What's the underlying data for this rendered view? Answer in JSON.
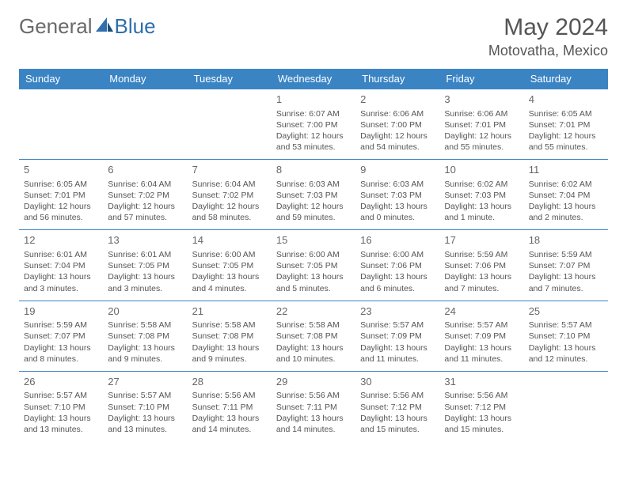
{
  "brand": {
    "part1": "General",
    "part2": "Blue"
  },
  "title": {
    "month": "May 2024",
    "location": "Motovatha, Mexico"
  },
  "colors": {
    "header_bg": "#3b84c4",
    "header_text": "#ffffff",
    "cell_border": "#3b84c4",
    "text": "#555555",
    "background": "#ffffff"
  },
  "weekdays": [
    "Sunday",
    "Monday",
    "Tuesday",
    "Wednesday",
    "Thursday",
    "Friday",
    "Saturday"
  ],
  "weeks": [
    [
      null,
      null,
      null,
      {
        "d": "1",
        "sr": "Sunrise: 6:07 AM",
        "ss": "Sunset: 7:00 PM",
        "dl1": "Daylight: 12 hours",
        "dl2": "and 53 minutes."
      },
      {
        "d": "2",
        "sr": "Sunrise: 6:06 AM",
        "ss": "Sunset: 7:00 PM",
        "dl1": "Daylight: 12 hours",
        "dl2": "and 54 minutes."
      },
      {
        "d": "3",
        "sr": "Sunrise: 6:06 AM",
        "ss": "Sunset: 7:01 PM",
        "dl1": "Daylight: 12 hours",
        "dl2": "and 55 minutes."
      },
      {
        "d": "4",
        "sr": "Sunrise: 6:05 AM",
        "ss": "Sunset: 7:01 PM",
        "dl1": "Daylight: 12 hours",
        "dl2": "and 55 minutes."
      }
    ],
    [
      {
        "d": "5",
        "sr": "Sunrise: 6:05 AM",
        "ss": "Sunset: 7:01 PM",
        "dl1": "Daylight: 12 hours",
        "dl2": "and 56 minutes."
      },
      {
        "d": "6",
        "sr": "Sunrise: 6:04 AM",
        "ss": "Sunset: 7:02 PM",
        "dl1": "Daylight: 12 hours",
        "dl2": "and 57 minutes."
      },
      {
        "d": "7",
        "sr": "Sunrise: 6:04 AM",
        "ss": "Sunset: 7:02 PM",
        "dl1": "Daylight: 12 hours",
        "dl2": "and 58 minutes."
      },
      {
        "d": "8",
        "sr": "Sunrise: 6:03 AM",
        "ss": "Sunset: 7:03 PM",
        "dl1": "Daylight: 12 hours",
        "dl2": "and 59 minutes."
      },
      {
        "d": "9",
        "sr": "Sunrise: 6:03 AM",
        "ss": "Sunset: 7:03 PM",
        "dl1": "Daylight: 13 hours",
        "dl2": "and 0 minutes."
      },
      {
        "d": "10",
        "sr": "Sunrise: 6:02 AM",
        "ss": "Sunset: 7:03 PM",
        "dl1": "Daylight: 13 hours",
        "dl2": "and 1 minute."
      },
      {
        "d": "11",
        "sr": "Sunrise: 6:02 AM",
        "ss": "Sunset: 7:04 PM",
        "dl1": "Daylight: 13 hours",
        "dl2": "and 2 minutes."
      }
    ],
    [
      {
        "d": "12",
        "sr": "Sunrise: 6:01 AM",
        "ss": "Sunset: 7:04 PM",
        "dl1": "Daylight: 13 hours",
        "dl2": "and 3 minutes."
      },
      {
        "d": "13",
        "sr": "Sunrise: 6:01 AM",
        "ss": "Sunset: 7:05 PM",
        "dl1": "Daylight: 13 hours",
        "dl2": "and 3 minutes."
      },
      {
        "d": "14",
        "sr": "Sunrise: 6:00 AM",
        "ss": "Sunset: 7:05 PM",
        "dl1": "Daylight: 13 hours",
        "dl2": "and 4 minutes."
      },
      {
        "d": "15",
        "sr": "Sunrise: 6:00 AM",
        "ss": "Sunset: 7:05 PM",
        "dl1": "Daylight: 13 hours",
        "dl2": "and 5 minutes."
      },
      {
        "d": "16",
        "sr": "Sunrise: 6:00 AM",
        "ss": "Sunset: 7:06 PM",
        "dl1": "Daylight: 13 hours",
        "dl2": "and 6 minutes."
      },
      {
        "d": "17",
        "sr": "Sunrise: 5:59 AM",
        "ss": "Sunset: 7:06 PM",
        "dl1": "Daylight: 13 hours",
        "dl2": "and 7 minutes."
      },
      {
        "d": "18",
        "sr": "Sunrise: 5:59 AM",
        "ss": "Sunset: 7:07 PM",
        "dl1": "Daylight: 13 hours",
        "dl2": "and 7 minutes."
      }
    ],
    [
      {
        "d": "19",
        "sr": "Sunrise: 5:59 AM",
        "ss": "Sunset: 7:07 PM",
        "dl1": "Daylight: 13 hours",
        "dl2": "and 8 minutes."
      },
      {
        "d": "20",
        "sr": "Sunrise: 5:58 AM",
        "ss": "Sunset: 7:08 PM",
        "dl1": "Daylight: 13 hours",
        "dl2": "and 9 minutes."
      },
      {
        "d": "21",
        "sr": "Sunrise: 5:58 AM",
        "ss": "Sunset: 7:08 PM",
        "dl1": "Daylight: 13 hours",
        "dl2": "and 9 minutes."
      },
      {
        "d": "22",
        "sr": "Sunrise: 5:58 AM",
        "ss": "Sunset: 7:08 PM",
        "dl1": "Daylight: 13 hours",
        "dl2": "and 10 minutes."
      },
      {
        "d": "23",
        "sr": "Sunrise: 5:57 AM",
        "ss": "Sunset: 7:09 PM",
        "dl1": "Daylight: 13 hours",
        "dl2": "and 11 minutes."
      },
      {
        "d": "24",
        "sr": "Sunrise: 5:57 AM",
        "ss": "Sunset: 7:09 PM",
        "dl1": "Daylight: 13 hours",
        "dl2": "and 11 minutes."
      },
      {
        "d": "25",
        "sr": "Sunrise: 5:57 AM",
        "ss": "Sunset: 7:10 PM",
        "dl1": "Daylight: 13 hours",
        "dl2": "and 12 minutes."
      }
    ],
    [
      {
        "d": "26",
        "sr": "Sunrise: 5:57 AM",
        "ss": "Sunset: 7:10 PM",
        "dl1": "Daylight: 13 hours",
        "dl2": "and 13 minutes."
      },
      {
        "d": "27",
        "sr": "Sunrise: 5:57 AM",
        "ss": "Sunset: 7:10 PM",
        "dl1": "Daylight: 13 hours",
        "dl2": "and 13 minutes."
      },
      {
        "d": "28",
        "sr": "Sunrise: 5:56 AM",
        "ss": "Sunset: 7:11 PM",
        "dl1": "Daylight: 13 hours",
        "dl2": "and 14 minutes."
      },
      {
        "d": "29",
        "sr": "Sunrise: 5:56 AM",
        "ss": "Sunset: 7:11 PM",
        "dl1": "Daylight: 13 hours",
        "dl2": "and 14 minutes."
      },
      {
        "d": "30",
        "sr": "Sunrise: 5:56 AM",
        "ss": "Sunset: 7:12 PM",
        "dl1": "Daylight: 13 hours",
        "dl2": "and 15 minutes."
      },
      {
        "d": "31",
        "sr": "Sunrise: 5:56 AM",
        "ss": "Sunset: 7:12 PM",
        "dl1": "Daylight: 13 hours",
        "dl2": "and 15 minutes."
      },
      null
    ]
  ]
}
